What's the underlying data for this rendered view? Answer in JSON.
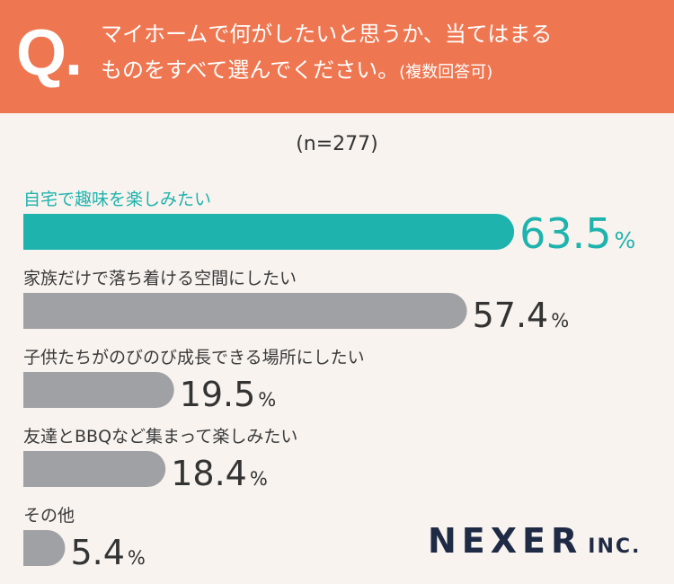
{
  "question": {
    "mark": "Q.",
    "line1": "マイホームで何がしたいと思うか、当てはまる",
    "line2": "ものをすべて選んでください。",
    "note": "(複数回答可)"
  },
  "sample_size": "(n=277)",
  "colors": {
    "header": "#ee7650",
    "highlight": "#1fb3ad",
    "bar": "#a0a1a5",
    "background": "#f8f3ef"
  },
  "chart_data": {
    "type": "bar",
    "orientation": "horizontal",
    "unit": "%",
    "categories": [
      "自宅で趣味を楽しみたい",
      "家族だけで落ち着ける空間にしたい",
      "子供たちがのびのび成長できる場所にしたい",
      "友達とBBQなど集まって楽しみたい",
      "その他"
    ],
    "values": [
      63.5,
      57.4,
      19.5,
      18.4,
      5.4
    ],
    "value_labels": [
      "63.5",
      "57.4",
      "19.5",
      "18.4",
      "5.4"
    ],
    "highlight_index": 0
  },
  "logo": {
    "main": "NEXER",
    "sub": "INC."
  }
}
